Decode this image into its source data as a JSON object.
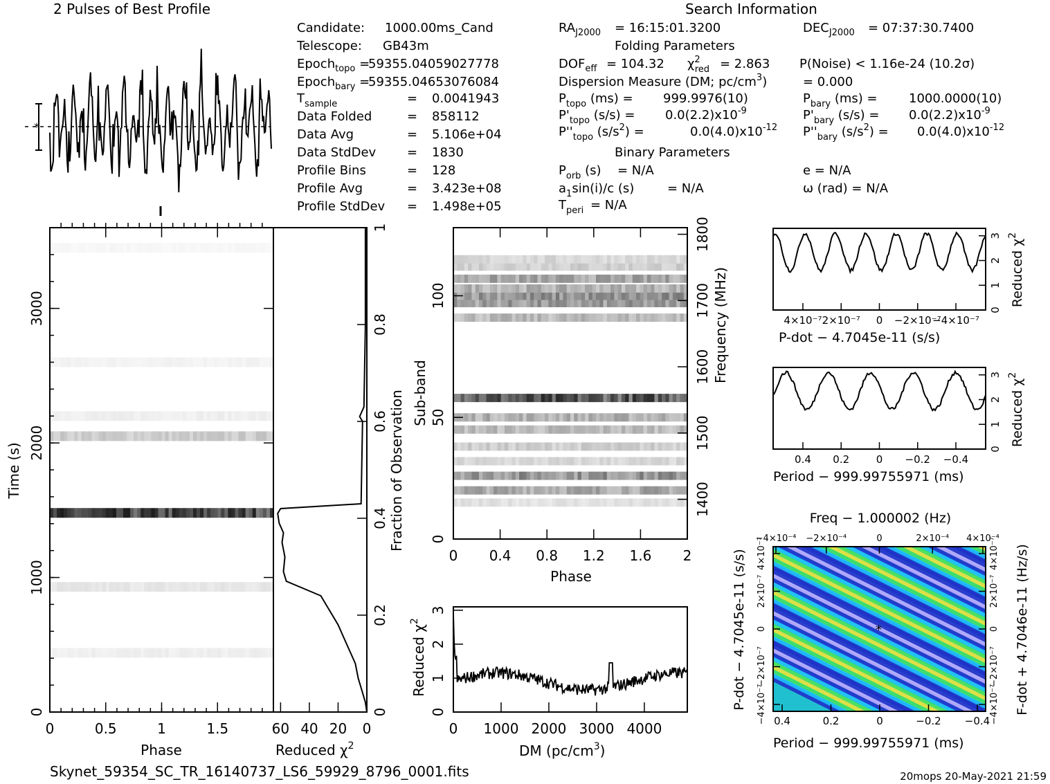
{
  "header": {
    "profile_title": "2 Pulses of Best Profile",
    "search_title": "Search Information",
    "folding_title": "Folding Parameters",
    "binary_title": "Binary Parameters",
    "footer_file": "Skynet_59354_SC_TR_16140737_LS6_59929_8796_0001.fits",
    "footer_stamp": "20mops 20-May-2021 21:59"
  },
  "info": {
    "candidate_label": "Candidate:",
    "candidate_value": "1000.00ms_Cand",
    "telescope_label": "Telescope:",
    "telescope_value": "GB43m",
    "epoch_topo": "59355.04059027778",
    "epoch_bary": "59355.04653076084",
    "t_sample": "0.0041943",
    "data_folded": "858112",
    "data_avg": "5.106e+04",
    "data_stddev": "1830",
    "profile_bins": "128",
    "profile_avg": "3.423e+08",
    "profile_stddev": "1.498e+05"
  },
  "search": {
    "ra": "= 16:15:01.3200",
    "dec": "= 07:37:30.7400",
    "dof_eff": "= 104.32",
    "chi2_red": "= 2.863",
    "p_noise": "P(Noise) < 1.16e-24  (10.2σ)",
    "dm": "= 0.000",
    "p_topo": "999.9976(10)",
    "p_bary": "1000.0000(10)",
    "pd_topo": "0.0(2.2)",
    "pd_bary": "0.0(2.2)",
    "pdd_topo": "0.0(4.0)",
    "pdd_bary": "0.0(4.0)",
    "p_orb": "= N/A",
    "e": "e = N/A",
    "a1sini": "= N/A",
    "omega": "ω (rad) = N/A",
    "t_peri": "= N/A"
  },
  "colors": {
    "line": "#000000",
    "grid_dark": "#222222"
  },
  "chart_data": [
    {
      "id": "pulse-profile",
      "type": "line",
      "title": "2 Pulses of Best Profile",
      "x": "phase 0–2 (256 samples)",
      "y_range": [
        -1.0,
        1.0
      ]
    },
    {
      "id": "time-phase",
      "type": "heatmap",
      "xlabel": "Phase",
      "ylabel": "Time (s)",
      "xticks": [
        "0",
        "0.5",
        "1",
        "1.5"
      ],
      "yticks": [
        "0",
        "1000",
        "2000",
        "3000"
      ],
      "xlim": [
        0,
        2
      ],
      "ylim": [
        0,
        3600
      ],
      "bright_rows": [
        {
          "time": 1480,
          "level": 0.9
        },
        {
          "time": 2050,
          "level": 0.25
        },
        {
          "time": 2200,
          "level": 0.08
        },
        {
          "time": 930,
          "level": 0.12
        },
        {
          "time": 440,
          "level": 0.08
        },
        {
          "time": 2600,
          "level": 0.06
        },
        {
          "time": 3450,
          "level": 0.04
        }
      ]
    },
    {
      "id": "reduced-chi2-vs-time",
      "type": "line",
      "xlabel": "Reduced χ",
      "ylabel": "Fraction of Observation",
      "xticks": [
        "60",
        "40",
        "20",
        "0"
      ],
      "yticks": [
        "0",
        "0.2",
        "0.4",
        "0.6",
        "0.8",
        "1"
      ],
      "xlim": [
        65,
        0
      ],
      "ylim": [
        0,
        1
      ],
      "points": [
        [
          0,
          0
        ],
        [
          1,
          0.02
        ],
        [
          4,
          0.05
        ],
        [
          6,
          0.07
        ],
        [
          8,
          0.1
        ],
        [
          11,
          0.12
        ],
        [
          14,
          0.14
        ],
        [
          17,
          0.16
        ],
        [
          20,
          0.18
        ],
        [
          24,
          0.2
        ],
        [
          28,
          0.22
        ],
        [
          32,
          0.24
        ],
        [
          40,
          0.25
        ],
        [
          56,
          0.27
        ],
        [
          58,
          0.29
        ],
        [
          57,
          0.32
        ],
        [
          59,
          0.35
        ],
        [
          58,
          0.37
        ],
        [
          61,
          0.39
        ],
        [
          62,
          0.41
        ],
        [
          60,
          0.42
        ],
        [
          4,
          0.43
        ],
        [
          3,
          0.6
        ],
        [
          5,
          0.61
        ],
        [
          2,
          0.63
        ],
        [
          1,
          0.8
        ],
        [
          1,
          1
        ]
      ]
    },
    {
      "id": "subband-phase",
      "type": "heatmap",
      "xlabel": "Phase",
      "ylabel": "Sub-band",
      "y2label": "Frequency (MHz)",
      "xticks": [
        "0",
        "0.4",
        "0.8",
        "1.2",
        "1.6",
        "2"
      ],
      "yticks": [
        "0",
        "50",
        "100"
      ],
      "y2ticks": [
        "1400",
        "1500",
        "1600",
        "1700",
        "1800"
      ],
      "xlim": [
        0,
        2
      ],
      "ylim": [
        0,
        128
      ],
      "bright_bands": [
        {
          "band": 58,
          "level": 0.85
        },
        {
          "band": 26,
          "level": 0.55
        },
        {
          "band": 20,
          "level": 0.45
        },
        {
          "band": 50,
          "level": 0.4
        },
        {
          "band": 45,
          "level": 0.35
        },
        {
          "band": 38,
          "level": 0.25
        },
        {
          "band": 91,
          "level": 0.35
        },
        {
          "band": 97,
          "level": 0.5
        },
        {
          "band": 100,
          "level": 0.55
        },
        {
          "band": 103,
          "level": 0.4
        },
        {
          "band": 107,
          "level": 0.45
        },
        {
          "band": 112,
          "level": 0.25
        },
        {
          "band": 115,
          "level": 0.2
        },
        {
          "band": 15,
          "level": 0.15
        },
        {
          "band": 32,
          "level": 0.2
        }
      ]
    },
    {
      "id": "dm-curve",
      "type": "line",
      "xlabel": "DM (pc/cm",
      "ylabel": "Reduced χ",
      "xticks": [
        "0",
        "1000",
        "2000",
        "3000",
        "4000"
      ],
      "yticks": [
        "0",
        "1",
        "2",
        "3"
      ],
      "xlim": [
        0,
        4900
      ],
      "ylim": [
        0,
        3.1
      ]
    },
    {
      "id": "pdot-curve",
      "type": "line",
      "xlabel": "P-dot − 4.7045e-11 (s/s)",
      "ylabel": "Reduced χ",
      "xticks": [
        "4×10⁻⁷",
        "2×10⁻⁷",
        "0",
        "−2×10⁻⁷",
        "−4×10⁻⁷"
      ],
      "yticks": [
        "0",
        "1",
        "2",
        "3"
      ],
      "xlim": [
        4.6e-07,
        -4.6e-07
      ],
      "ylim": [
        0,
        3.3
      ]
    },
    {
      "id": "period-curve",
      "type": "line",
      "xlabel": "Period − 999.99755971 (ms)",
      "ylabel": "Reduced χ",
      "xticks": [
        "0.4",
        "0.2",
        "0",
        "−0.2",
        "−0.4"
      ],
      "yticks": [
        "0",
        "1",
        "2",
        "3"
      ],
      "xlim": [
        0.45,
        -0.45
      ],
      "ylim": [
        0,
        3.3
      ]
    },
    {
      "id": "p-pdot-plane",
      "type": "heatmap",
      "title": "Freq − 1.000002 (Hz)",
      "xlabel": "Period − 999.99755971 (ms)",
      "ylabel": "P-dot − 4.7045e-11 (s/s)",
      "y2label": "F-dot + 4.7046e-11 (Hz/s)",
      "xticks": [
        "0.4",
        "0.2",
        "0",
        "−0.2",
        "−0.4"
      ],
      "topticks": [
        "−4×10⁻⁴",
        "−2×10⁻⁴",
        "0",
        "2×10⁻⁴",
        "4×10⁻⁴"
      ],
      "yticks": [
        "4×10⁻⁷",
        "2×10⁻⁷",
        "0",
        "−2×10⁻⁷",
        "−4×10⁻⁷"
      ],
      "y2ticks": [
        "4×10⁻⁷",
        "2×10⁻⁷",
        "0",
        "−2×10⁻⁷",
        "−4×10⁻⁷"
      ]
    }
  ]
}
